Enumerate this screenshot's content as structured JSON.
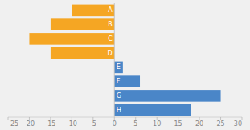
{
  "chart_data": {
    "type": "bar",
    "orientation": "horizontal",
    "categories": [
      "A",
      "B",
      "C",
      "D",
      "E",
      "F",
      "G",
      "H"
    ],
    "values": [
      -10,
      -15,
      -20,
      -15,
      2,
      6,
      25,
      18
    ],
    "colors": [
      "#f5a623",
      "#f5a623",
      "#f5a623",
      "#f5a623",
      "#4a86c8",
      "#4a86c8",
      "#4a86c8",
      "#4a86c8"
    ],
    "xlim": [
      -25,
      30
    ],
    "xticks": [
      -25,
      -20,
      -15,
      -10,
      -5,
      0,
      5,
      10,
      15,
      20,
      25,
      30
    ],
    "grid": false
  }
}
